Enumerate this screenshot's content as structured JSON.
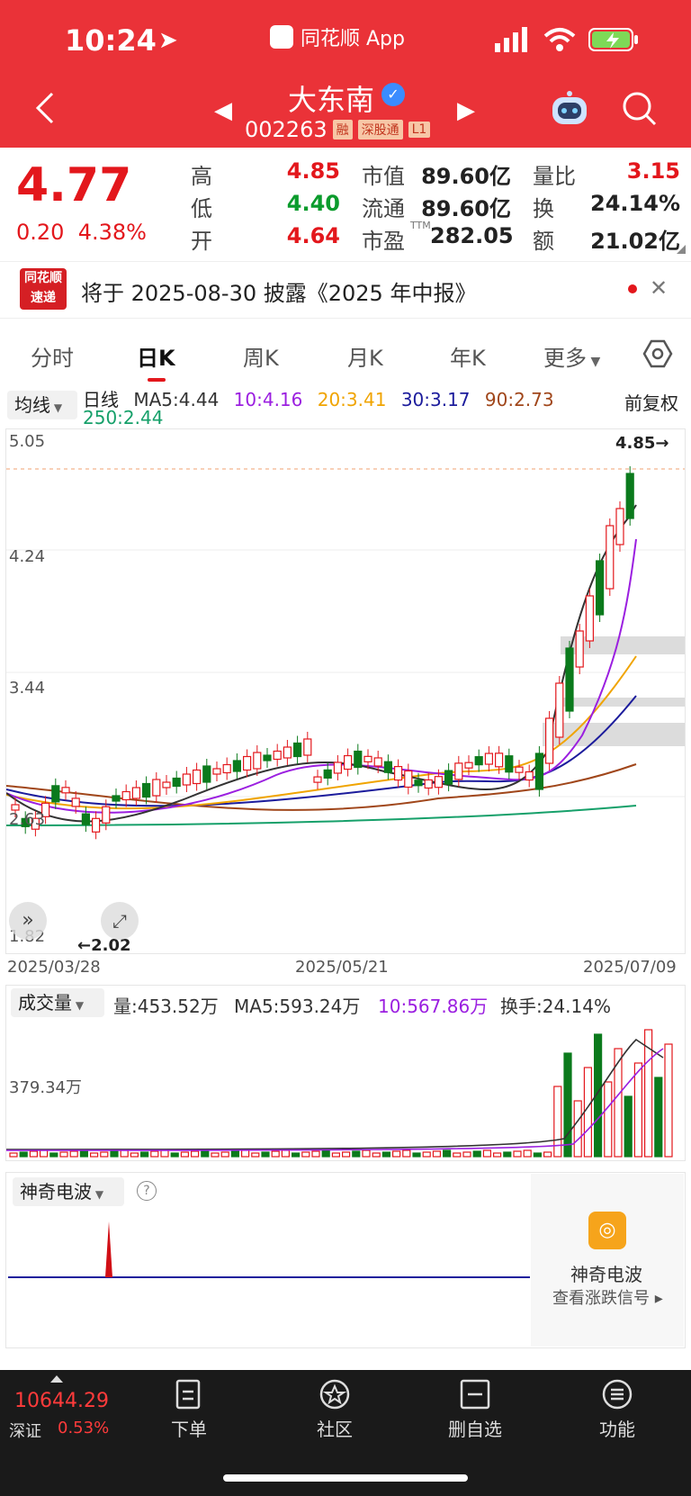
{
  "status": {
    "time": "10:24",
    "app_name": "同花顺 App"
  },
  "stock": {
    "name": "大东南",
    "code": "002263",
    "tags": [
      "融",
      "深股通",
      "L1"
    ],
    "price": "4.77",
    "change": "0.20",
    "change_pct": "4.38%"
  },
  "quote": {
    "high_label": "高",
    "high": "4.85",
    "low_label": "低",
    "low": "4.40",
    "open_label": "开",
    "open": "4.64",
    "mktcap_label": "市值",
    "mktcap": "89.60亿",
    "float_label": "流通",
    "float": "89.60亿",
    "pe_label": "市盈",
    "pe_sup": "TTM",
    "pe": "282.05",
    "volratio_label": "量比",
    "volratio": "3.15",
    "turnover_label": "换",
    "turnover": "24.14%",
    "amount_label": "额",
    "amount": "21.02亿"
  },
  "notice": {
    "logo_top": "同花顺",
    "logo_bottom": "速递",
    "text": "将于 2025-08-30 披露《2025 年中报》"
  },
  "tabs": [
    "分时",
    "日K",
    "周K",
    "月K",
    "年K",
    "更多"
  ],
  "ma": {
    "dropdown": "均线",
    "prefix": "日线",
    "items": [
      "MA5:4.44",
      "10:4.16",
      "20:3.41",
      "30:3.17",
      "90:2.73",
      "250:2.44"
    ],
    "colors": [
      "#333333",
      "#9b1fe0",
      "#f0a400",
      "#1c1c9c",
      "#a0461a",
      "#16a06a"
    ],
    "adjust": "前复权"
  },
  "kchart": {
    "y_labels": [
      "5.05",
      "4.24",
      "3.44",
      "2.63",
      "1.82"
    ],
    "high_mark": "4.85→",
    "low_mark": "←2.02",
    "dates": [
      "2025/03/28",
      "2025/05/21",
      "2025/07/09"
    ]
  },
  "volume": {
    "dropdown": "成交量",
    "vol": "量:453.52万",
    "ma5": "MA5:593.24万",
    "ma10": "10:567.86万",
    "turnover": "换手:24.14%",
    "y_label": "379.34万"
  },
  "wave": {
    "dropdown": "神奇电波",
    "side_title": "神奇电波",
    "side_link": "查看涨跌信号 ▸"
  },
  "bottom": {
    "index_value": "10644.29",
    "index_name": "深证",
    "index_pct": "0.53%",
    "nav": [
      "下单",
      "社区",
      "删自选",
      "功能"
    ]
  }
}
